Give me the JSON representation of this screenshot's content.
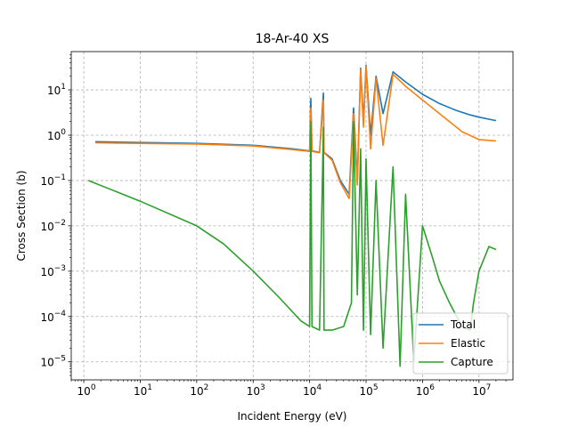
{
  "chart_data": {
    "type": "line",
    "title": "18-Ar-40 XS",
    "xlabel": "Incident Energy (eV)",
    "ylabel": "Cross Section (b)",
    "xscale": "log",
    "yscale": "log",
    "xlim": [
      0.6,
      40000000
    ],
    "ylim": [
      4e-06,
      70
    ],
    "grid": true,
    "legend_position": "lower-right",
    "x_ticks": [
      {
        "value": 1,
        "base": "10",
        "exp": "0"
      },
      {
        "value": 10,
        "base": "10",
        "exp": "1"
      },
      {
        "value": 100,
        "base": "10",
        "exp": "2"
      },
      {
        "value": 1000,
        "base": "10",
        "exp": "3"
      },
      {
        "value": 10000,
        "base": "10",
        "exp": "4"
      },
      {
        "value": 100000,
        "base": "10",
        "exp": "5"
      },
      {
        "value": 1000000,
        "base": "10",
        "exp": "6"
      },
      {
        "value": 10000000,
        "base": "10",
        "exp": "7"
      }
    ],
    "y_ticks": [
      {
        "value": 1e-05,
        "base": "10",
        "exp": "−5"
      },
      {
        "value": 0.0001,
        "base": "10",
        "exp": "−4"
      },
      {
        "value": 0.001,
        "base": "10",
        "exp": "−3"
      },
      {
        "value": 0.01,
        "base": "10",
        "exp": "−2"
      },
      {
        "value": 0.1,
        "base": "10",
        "exp": "−1"
      },
      {
        "value": 1,
        "base": "10",
        "exp": "0"
      },
      {
        "value": 10,
        "base": "10",
        "exp": "1"
      }
    ],
    "series": [
      {
        "name": "Total",
        "color": "#1f77b4",
        "points": [
          [
            1.6,
            0.72
          ],
          [
            10,
            0.69
          ],
          [
            100,
            0.66
          ],
          [
            1000,
            0.6
          ],
          [
            5000,
            0.5
          ],
          [
            10000,
            0.45
          ],
          [
            10500,
            6.5
          ],
          [
            11000,
            0.45
          ],
          [
            15000,
            0.42
          ],
          [
            17500,
            8.5
          ],
          [
            18000,
            0.42
          ],
          [
            25000,
            0.3
          ],
          [
            35000,
            0.1
          ],
          [
            50000,
            0.05
          ],
          [
            60000,
            4
          ],
          [
            70000,
            0.1
          ],
          [
            80000,
            30
          ],
          [
            90000,
            2
          ],
          [
            100000,
            35
          ],
          [
            120000,
            1
          ],
          [
            150000,
            20
          ],
          [
            200000,
            3
          ],
          [
            300000,
            25
          ],
          [
            500000,
            15
          ],
          [
            1000000,
            8
          ],
          [
            2000000,
            5
          ],
          [
            4000000,
            3.5
          ],
          [
            7000000,
            2.8
          ],
          [
            10000000,
            2.5
          ],
          [
            20000000,
            2.1
          ]
        ]
      },
      {
        "name": "Elastic",
        "color": "#ff7f0e",
        "points": [
          [
            1.6,
            0.68
          ],
          [
            10,
            0.66
          ],
          [
            100,
            0.64
          ],
          [
            1000,
            0.58
          ],
          [
            5000,
            0.48
          ],
          [
            10000,
            0.44
          ],
          [
            10500,
            4
          ],
          [
            11000,
            0.44
          ],
          [
            15000,
            0.41
          ],
          [
            17500,
            6
          ],
          [
            18000,
            0.41
          ],
          [
            25000,
            0.28
          ],
          [
            35000,
            0.09
          ],
          [
            50000,
            0.04
          ],
          [
            60000,
            3
          ],
          [
            70000,
            0.08
          ],
          [
            80000,
            28
          ],
          [
            90000,
            1.5
          ],
          [
            100000,
            33
          ],
          [
            120000,
            0.5
          ],
          [
            150000,
            18
          ],
          [
            200000,
            0.6
          ],
          [
            300000,
            22
          ],
          [
            500000,
            12
          ],
          [
            1000000,
            6
          ],
          [
            2000000,
            3
          ],
          [
            5000000,
            1.2
          ],
          [
            10000000,
            0.8
          ],
          [
            20000000,
            0.75
          ]
        ]
      },
      {
        "name": "Capture",
        "color": "#2ca02c",
        "points": [
          [
            1.2,
            0.1
          ],
          [
            10,
            0.035
          ],
          [
            100,
            0.01
          ],
          [
            300,
            0.004
          ],
          [
            1000,
            0.001
          ],
          [
            3000,
            0.00025
          ],
          [
            7000,
            8e-05
          ],
          [
            10000,
            6e-05
          ],
          [
            10500,
            2
          ],
          [
            11000,
            6e-05
          ],
          [
            15000,
            5e-05
          ],
          [
            17500,
            1.5
          ],
          [
            18000,
            5e-05
          ],
          [
            25000,
            5e-05
          ],
          [
            40000,
            6e-05
          ],
          [
            55000,
            0.0002
          ],
          [
            60000,
            2
          ],
          [
            70000,
            0.0003
          ],
          [
            80000,
            0.5
          ],
          [
            90000,
            5e-05
          ],
          [
            100000,
            0.3
          ],
          [
            120000,
            4e-05
          ],
          [
            150000,
            0.1
          ],
          [
            200000,
            2e-05
          ],
          [
            300000,
            0.2
          ],
          [
            400000,
            8e-06
          ],
          [
            500000,
            0.05
          ],
          [
            700000,
            1e-05
          ],
          [
            1000000,
            0.01
          ],
          [
            1500000,
            0.002
          ],
          [
            2000000,
            0.0006
          ],
          [
            3000000,
            0.0002
          ],
          [
            5000000,
            6e-05
          ],
          [
            7000000,
            5e-05
          ],
          [
            8000000,
            0.0002
          ],
          [
            10000000,
            0.001
          ],
          [
            15000000,
            0.0035
          ],
          [
            20000000,
            0.003
          ]
        ]
      }
    ]
  }
}
